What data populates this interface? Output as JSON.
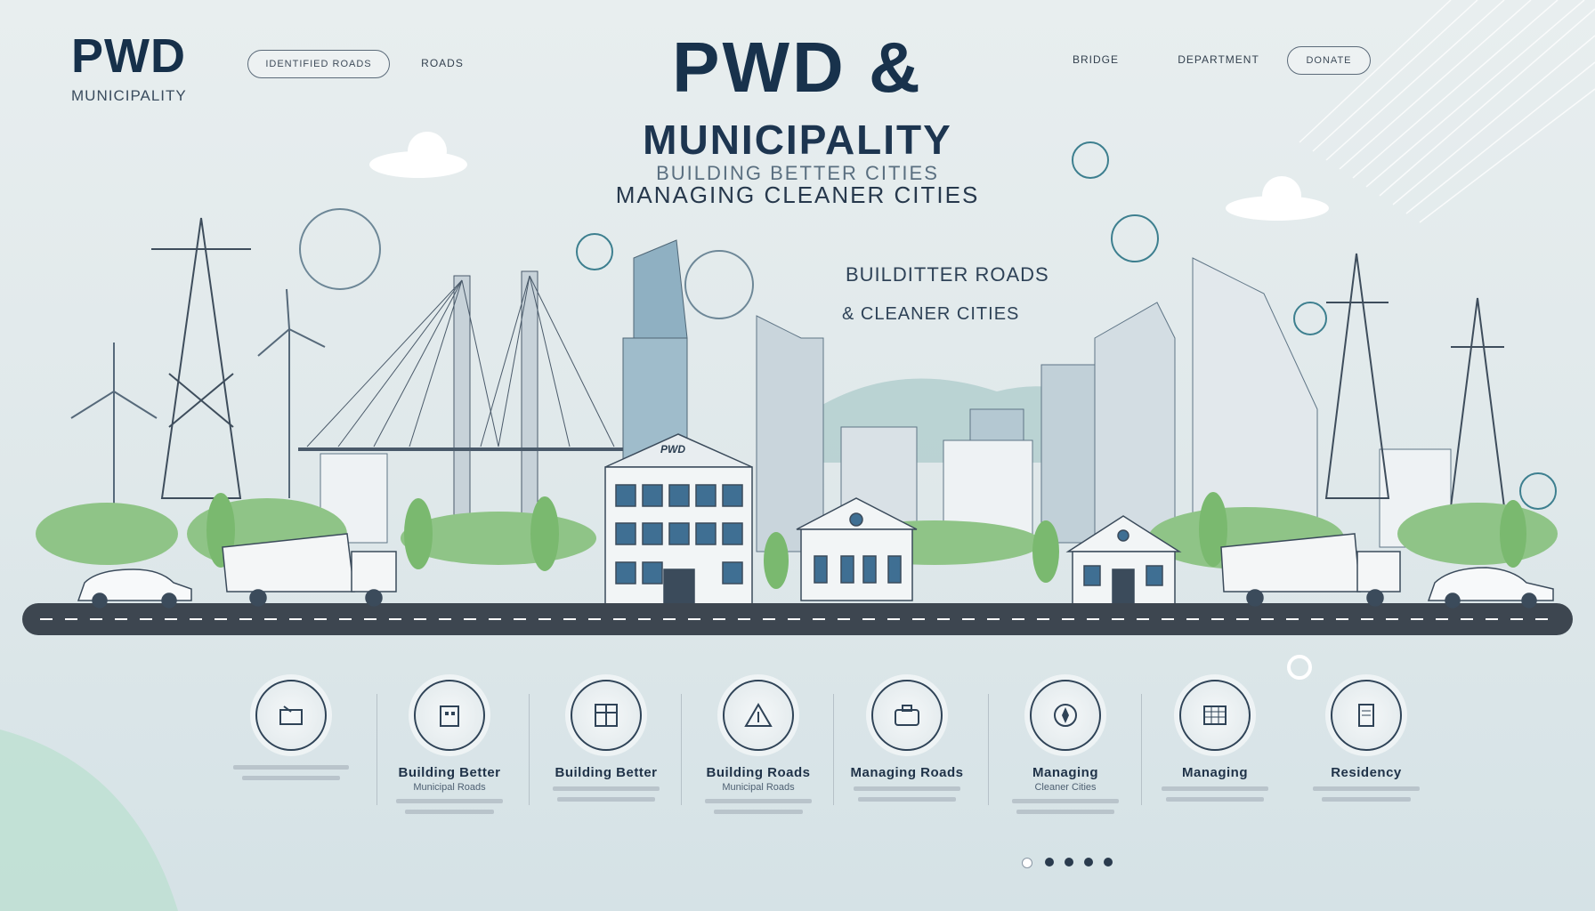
{
  "header": {
    "logo_title": "PWD",
    "logo_subtitle": "MUNICIPALITY",
    "pill_left": "IDENTIFIED ROADS",
    "nav_left": "ROADS",
    "nav_items": [
      "BRIDGE",
      "DEPARTMENT"
    ],
    "pill_right": "DONATE"
  },
  "hero": {
    "title_line1": "PWD &",
    "title_line2": "MUNICIPALITY",
    "tagline_top": "BUILDING BETTER CITIES",
    "tagline_main": "MANAGING CLEANER CITIES",
    "side_line1": "BUILDITTER ROADS",
    "side_line2": "& CLEANER CITIES",
    "building_sign": "PWD"
  },
  "features": [
    {
      "title": "",
      "subtitle": ""
    },
    {
      "title": "Building Better",
      "subtitle": "Municipal Roads"
    },
    {
      "title": "Building Better",
      "subtitle": ""
    },
    {
      "title": "Building Roads",
      "subtitle": "Municipal Roads"
    },
    {
      "title": "Managing Roads",
      "subtitle": ""
    },
    {
      "title": "Managing",
      "subtitle": "Cleaner Cities"
    },
    {
      "title": "Managing",
      "subtitle": ""
    },
    {
      "title": "Residency",
      "subtitle": ""
    }
  ],
  "colors": {
    "primary": "#16304a",
    "accent": "#2f8fa0",
    "green": "#6cae66",
    "road": "#3d4650"
  },
  "pagination": {
    "total": 5,
    "active": 0
  }
}
